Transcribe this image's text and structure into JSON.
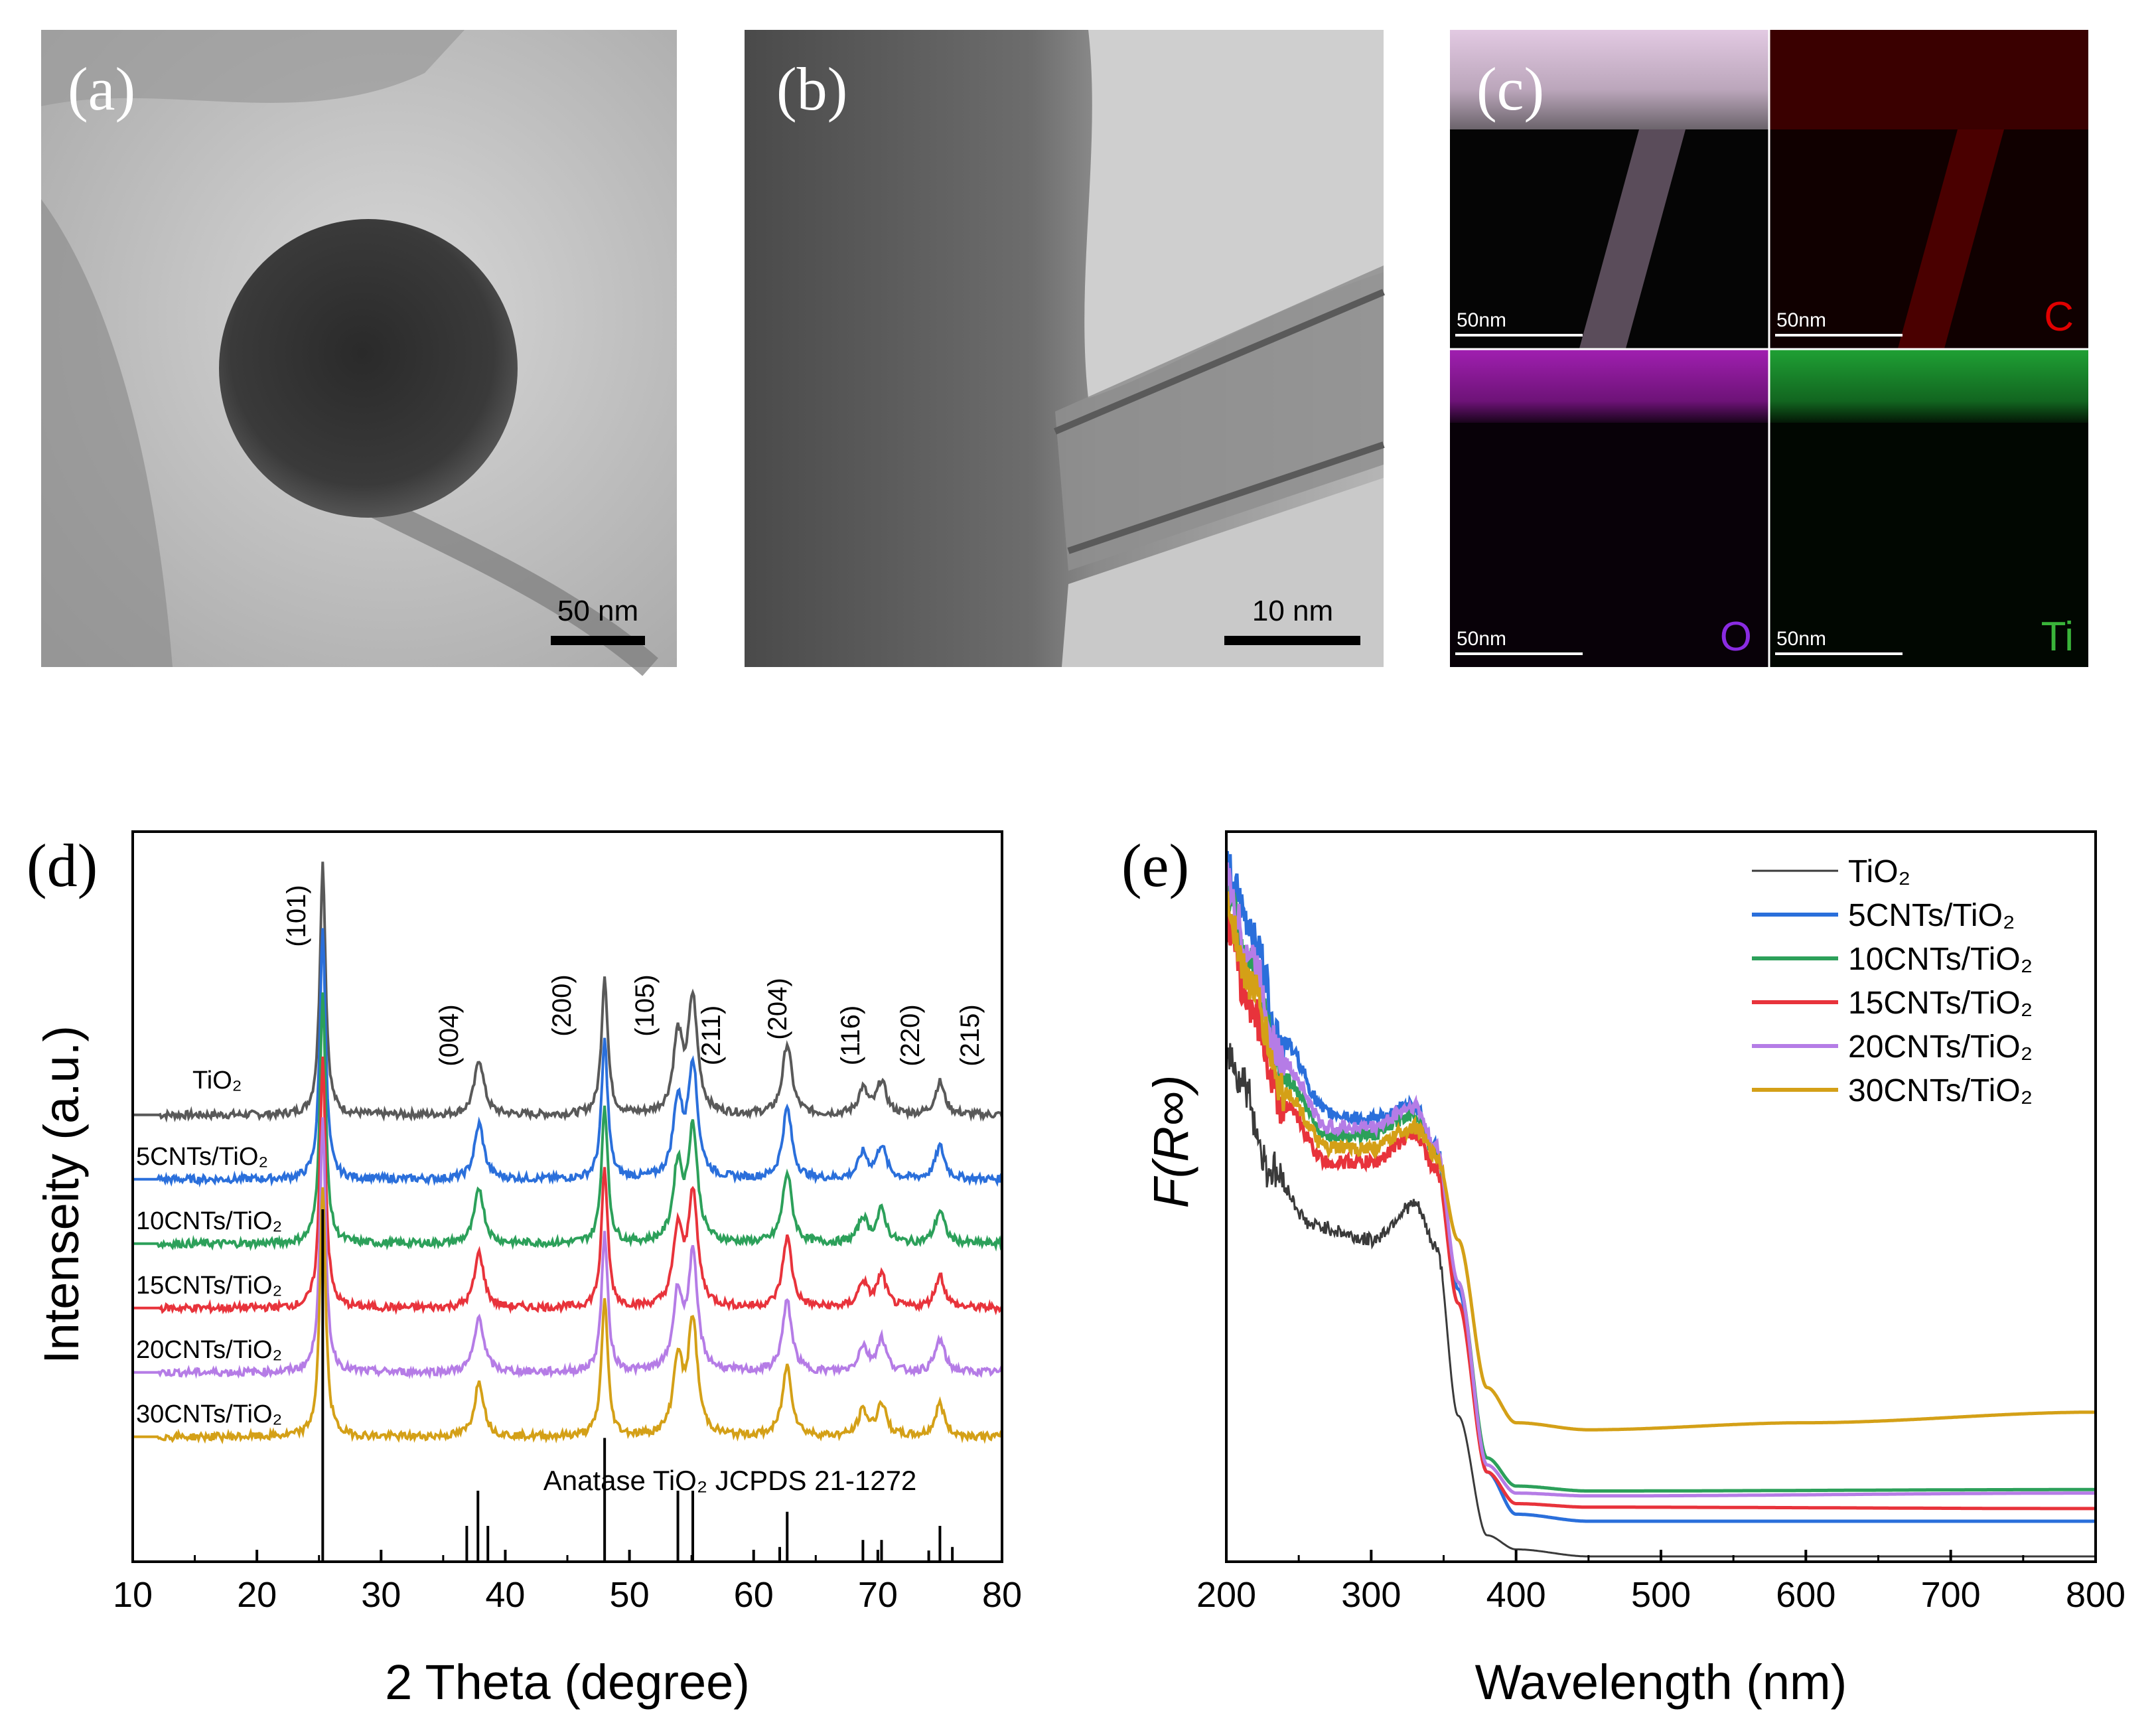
{
  "panels": {
    "a": {
      "label": "(a)",
      "scale_bar": "50 nm"
    },
    "b": {
      "label": "(b)",
      "scale_bar": "10 nm"
    },
    "c": {
      "label": "(c)",
      "tiles": [
        {
          "element": "",
          "scale_bar": "50nm",
          "color": "#ffffff"
        },
        {
          "element": "C",
          "scale_bar": "50nm",
          "color": "#e00000"
        },
        {
          "element": "O",
          "scale_bar": "50nm",
          "color": "#8a2be2"
        },
        {
          "element": "Ti",
          "scale_bar": "50nm",
          "color": "#3ab43a"
        }
      ]
    },
    "d": {
      "label": "(d)"
    },
    "e": {
      "label": "(e)"
    }
  },
  "chart_data": [
    {
      "panel": "d",
      "type": "line",
      "xlabel": "2 Theta (degree)",
      "ylabel": "Intenseity (a.u.)",
      "xlim": [
        10,
        80
      ],
      "xticks": [
        "10",
        "20",
        "30",
        "40",
        "50",
        "60",
        "70",
        "80"
      ],
      "peaks": [
        {
          "hkl": "(101)",
          "two_theta": 25.3,
          "height": 1.0,
          "width": 0.55
        },
        {
          "hkl": "(004)",
          "two_theta": 37.9,
          "height": 0.22,
          "width": 0.9
        },
        {
          "hkl": "(200)",
          "two_theta": 48.0,
          "height": 0.55,
          "width": 0.6
        },
        {
          "hkl": "(105)",
          "two_theta": 53.9,
          "height": 0.3,
          "width": 0.9
        },
        {
          "hkl": "(211)",
          "two_theta": 55.1,
          "height": 0.45,
          "width": 0.9
        },
        {
          "hkl": "(204)",
          "two_theta": 62.7,
          "height": 0.28,
          "width": 0.9
        },
        {
          "hkl": "(116)",
          "two_theta": 68.8,
          "height": 0.1,
          "width": 0.9
        },
        {
          "hkl": "(220)",
          "two_theta": 70.3,
          "height": 0.13,
          "width": 0.9
        },
        {
          "hkl": "(215)",
          "two_theta": 75.0,
          "height": 0.13,
          "width": 0.9
        }
      ],
      "series": [
        {
          "name": "TiO2",
          "label": "TiO₂",
          "color": "#595959",
          "offset": 5
        },
        {
          "name": "5CNTs/TiO2",
          "label": "5CNTs/TiO₂",
          "color": "#2a6fdb",
          "offset": 4
        },
        {
          "name": "10CNTs/TiO2",
          "label": "10CNTs/TiO₂",
          "color": "#2ca05a",
          "offset": 3
        },
        {
          "name": "15CNTs/TiO2",
          "label": "15CNTs/TiO₂",
          "color": "#e8333b",
          "offset": 2
        },
        {
          "name": "20CNTs/TiO2",
          "label": "20CNTs/TiO₂",
          "color": "#b57ce6",
          "offset": 1
        },
        {
          "name": "30CNTs/TiO2",
          "label": "30CNTs/TiO₂",
          "color": "#d4a017",
          "offset": 0
        }
      ],
      "reference": {
        "label": "Anatase TiO₂ JCPDS 21-1272",
        "lines": [
          {
            "two_theta": 25.3,
            "intensity": 100
          },
          {
            "two_theta": 36.9,
            "intensity": 10
          },
          {
            "two_theta": 37.8,
            "intensity": 20
          },
          {
            "two_theta": 38.6,
            "intensity": 10
          },
          {
            "two_theta": 48.0,
            "intensity": 35
          },
          {
            "two_theta": 53.9,
            "intensity": 20
          },
          {
            "two_theta": 55.1,
            "intensity": 20
          },
          {
            "two_theta": 62.1,
            "intensity": 4
          },
          {
            "two_theta": 62.7,
            "intensity": 14
          },
          {
            "two_theta": 68.8,
            "intensity": 6
          },
          {
            "two_theta": 70.3,
            "intensity": 6
          },
          {
            "two_theta": 74.1,
            "intensity": 3
          },
          {
            "two_theta": 75.0,
            "intensity": 10
          },
          {
            "two_theta": 76.0,
            "intensity": 4
          }
        ]
      }
    },
    {
      "panel": "e",
      "type": "line",
      "xlabel": "Wavelength (nm)",
      "ylabel": "F(R∞)",
      "xlim": [
        200,
        800
      ],
      "xticks": [
        "200",
        "300",
        "400",
        "500",
        "600",
        "700",
        "800"
      ],
      "series": [
        {
          "name": "TiO2",
          "label": "TiO₂",
          "color": "#3a3a3a",
          "points": [
            [
              200,
              0.72
            ],
            [
              210,
              0.68
            ],
            [
              230,
              0.55
            ],
            [
              260,
              0.47
            ],
            [
              300,
              0.45
            ],
            [
              330,
              0.5
            ],
            [
              345,
              0.44
            ],
            [
              360,
              0.2
            ],
            [
              380,
              0.03
            ],
            [
              400,
              0.01
            ],
            [
              450,
              0.0
            ],
            [
              800,
              0.0
            ]
          ]
        },
        {
          "name": "5CNTs/TiO2",
          "label": "5CNTs/TiO₂",
          "color": "#2a6fdb",
          "points": [
            [
              200,
              0.98
            ],
            [
              215,
              0.9
            ],
            [
              240,
              0.73
            ],
            [
              270,
              0.63
            ],
            [
              300,
              0.62
            ],
            [
              330,
              0.64
            ],
            [
              345,
              0.58
            ],
            [
              360,
              0.38
            ],
            [
              380,
              0.12
            ],
            [
              400,
              0.06
            ],
            [
              450,
              0.05
            ],
            [
              800,
              0.05
            ]
          ]
        },
        {
          "name": "10CNTs/TiO2",
          "label": "10CNTs/TiO₂",
          "color": "#2ca05a",
          "points": [
            [
              200,
              0.95
            ],
            [
              215,
              0.84
            ],
            [
              240,
              0.68
            ],
            [
              270,
              0.6
            ],
            [
              300,
              0.6
            ],
            [
              330,
              0.63
            ],
            [
              345,
              0.57
            ],
            [
              360,
              0.39
            ],
            [
              380,
              0.14
            ],
            [
              400,
              0.1
            ],
            [
              450,
              0.093
            ],
            [
              800,
              0.095
            ]
          ]
        },
        {
          "name": "15CNTs/TiO2",
          "label": "15CNTs/TiO₂",
          "color": "#e8333b",
          "points": [
            [
              200,
              0.9
            ],
            [
              215,
              0.79
            ],
            [
              240,
              0.64
            ],
            [
              270,
              0.56
            ],
            [
              300,
              0.56
            ],
            [
              330,
              0.6
            ],
            [
              345,
              0.55
            ],
            [
              360,
              0.36
            ],
            [
              380,
              0.12
            ],
            [
              400,
              0.075
            ],
            [
              450,
              0.07
            ],
            [
              800,
              0.068
            ]
          ]
        },
        {
          "name": "20CNTs/TiO2",
          "label": "20CNTs/TiO₂",
          "color": "#b57ce6",
          "points": [
            [
              200,
              0.96
            ],
            [
              215,
              0.86
            ],
            [
              240,
              0.7
            ],
            [
              270,
              0.61
            ],
            [
              300,
              0.61
            ],
            [
              330,
              0.64
            ],
            [
              345,
              0.58
            ],
            [
              360,
              0.39
            ],
            [
              380,
              0.13
            ],
            [
              400,
              0.09
            ],
            [
              450,
              0.086
            ],
            [
              800,
              0.09
            ]
          ]
        },
        {
          "name": "30CNTs/TiO2",
          "label": "30CNTs/TiO₂",
          "color": "#d4a017",
          "points": [
            [
              200,
              0.93
            ],
            [
              215,
              0.82
            ],
            [
              240,
              0.66
            ],
            [
              270,
              0.58
            ],
            [
              300,
              0.58
            ],
            [
              330,
              0.61
            ],
            [
              345,
              0.57
            ],
            [
              360,
              0.45
            ],
            [
              380,
              0.24
            ],
            [
              400,
              0.19
            ],
            [
              450,
              0.18
            ],
            [
              600,
              0.19
            ],
            [
              800,
              0.205
            ]
          ]
        }
      ]
    }
  ]
}
